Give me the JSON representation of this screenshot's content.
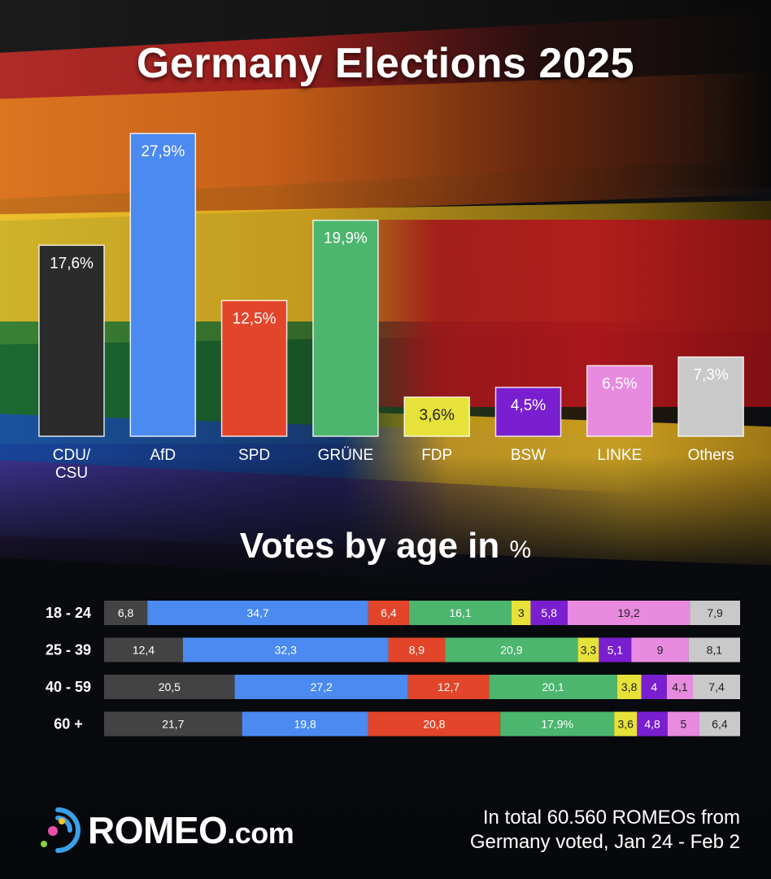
{
  "title": "Germany Elections 2025",
  "chart_data": [
    {
      "type": "bar",
      "title": "Germany Elections 2025",
      "categories": [
        "CDU/ CSU",
        "AfD",
        "SPD",
        "GRÜNE",
        "FDP",
        "BSW",
        "LINKE",
        "Others"
      ],
      "category_lines": [
        [
          "CDU/",
          "CSU"
        ],
        [
          "AfD"
        ],
        [
          "SPD"
        ],
        [
          "GRÜNE"
        ],
        [
          "FDP"
        ],
        [
          "BSW"
        ],
        [
          "LINKE"
        ],
        [
          "Others"
        ]
      ],
      "values": [
        17.6,
        27.9,
        12.5,
        19.9,
        3.6,
        4.5,
        6.5,
        7.3
      ],
      "value_labels": [
        "17,6%",
        "27,9%",
        "12,5%",
        "19,9%",
        "3,6%",
        "4,5%",
        "6,5%",
        "7,3%"
      ],
      "colors": [
        "#2b2b2b",
        "#4b8af0",
        "#e2452a",
        "#4cb56e",
        "#e6e23a",
        "#7a1fd0",
        "#e88ae0",
        "#c9c9c9"
      ],
      "ylim": [
        0,
        30
      ]
    },
    {
      "type": "bar",
      "stacked": true,
      "orientation": "horizontal",
      "title": "Votes by age in %",
      "categories": [
        "18 - 24",
        "25 - 39",
        "40 - 59",
        "60 +"
      ],
      "series": [
        {
          "color": "#434343",
          "values": [
            6.8,
            12.4,
            20.5,
            21.7
          ],
          "labels": [
            "6,8",
            "12,4",
            "20,5",
            "21,7"
          ]
        },
        {
          "color": "#4b8af0",
          "values": [
            34.7,
            32.3,
            27.2,
            19.8
          ],
          "labels": [
            "34,7",
            "32,3",
            "27,2",
            "19,8"
          ]
        },
        {
          "color": "#e2452a",
          "values": [
            6.4,
            8.9,
            12.7,
            20.8
          ],
          "labels": [
            "6,4",
            "8,9",
            "12,7",
            "20,8"
          ]
        },
        {
          "color": "#4cb56e",
          "values": [
            16.1,
            20.9,
            20.1,
            17.9
          ],
          "labels": [
            "16,1",
            "20,9",
            "20,1",
            "17,9%"
          ]
        },
        {
          "color": "#e6e23a",
          "values": [
            3,
            3.3,
            3.8,
            3.6
          ],
          "labels": [
            "3",
            "3,3",
            "3,8",
            "3,6"
          ]
        },
        {
          "color": "#7a1fd0",
          "values": [
            5.8,
            5.1,
            4,
            4.8
          ],
          "labels": [
            "5,8",
            "5,1",
            "4",
            "4,8"
          ]
        },
        {
          "color": "#e88ae0",
          "values": [
            19.2,
            9,
            4.1,
            5
          ],
          "labels": [
            "19,2",
            "9",
            "4,1",
            "5"
          ]
        },
        {
          "color": "#c9c9c9",
          "values": [
            7.9,
            8.1,
            7.4,
            6.4
          ],
          "labels": [
            "7,9",
            "8,1",
            "7,4",
            "6,4"
          ]
        }
      ]
    }
  ],
  "subtitle": {
    "main": "Votes by age in",
    "unit": "%"
  },
  "logo": {
    "name": "ROMEO",
    "suffix": ".com",
    "icon": "romeo-logo-icon"
  },
  "footnote": {
    "line1": "In total 60.560 ROMEOs from",
    "line2": "Germany voted, Jan 24 - Feb 2"
  }
}
